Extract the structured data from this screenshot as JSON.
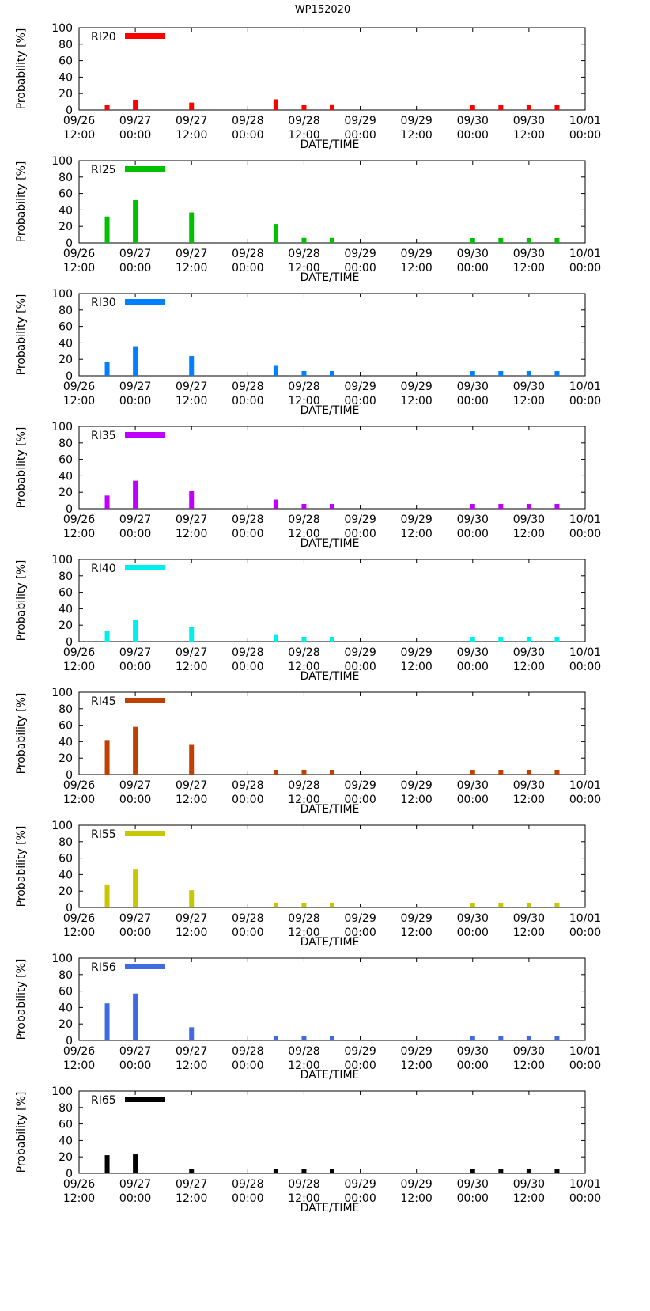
{
  "figure": {
    "title": "WP152020"
  },
  "axes_common": {
    "ylabel": "Probability [%]",
    "xlabel": "DATE/TIME",
    "yticks": [
      "0",
      "20",
      "40",
      "60",
      "80",
      "100"
    ],
    "xticks": [
      {
        "date": "09/26",
        "time": "12:00"
      },
      {
        "date": "09/27",
        "time": "00:00"
      },
      {
        "date": "09/27",
        "time": "12:00"
      },
      {
        "date": "09/28",
        "time": "00:00"
      },
      {
        "date": "09/28",
        "time": "12:00"
      },
      {
        "date": "09/29",
        "time": "00:00"
      },
      {
        "date": "09/29",
        "time": "12:00"
      },
      {
        "date": "09/30",
        "time": "00:00"
      },
      {
        "date": "09/30",
        "time": "12:00"
      },
      {
        "date": "10/01",
        "time": "00:00"
      }
    ]
  },
  "chart_data": [
    {
      "type": "bar",
      "title": "RI20",
      "color": "#ff0000",
      "xlabel": "DATE/TIME",
      "ylabel": "Probability [%]",
      "ylim": [
        0,
        100
      ],
      "x_hours_since_0926_1200": [
        6,
        12,
        24,
        42,
        48,
        54,
        84,
        90,
        96,
        102
      ],
      "values": [
        5,
        12,
        9,
        13,
        5,
        6,
        2,
        2,
        2,
        2
      ]
    },
    {
      "type": "bar",
      "title": "RI25",
      "color": "#00c000",
      "xlabel": "DATE/TIME",
      "ylabel": "Probability [%]",
      "ylim": [
        0,
        100
      ],
      "x_hours_since_0926_1200": [
        6,
        12,
        24,
        42,
        48,
        54,
        84,
        90,
        96,
        102
      ],
      "values": [
        32,
        52,
        37,
        23,
        6,
        6,
        2,
        2,
        2,
        2
      ]
    },
    {
      "type": "bar",
      "title": "RI30",
      "color": "#0080ff",
      "xlabel": "DATE/TIME",
      "ylabel": "Probability [%]",
      "ylim": [
        0,
        100
      ],
      "x_hours_since_0926_1200": [
        6,
        12,
        24,
        42,
        48,
        54,
        84,
        90,
        96,
        102
      ],
      "values": [
        17,
        36,
        24,
        13,
        3,
        3,
        2,
        2,
        2,
        2
      ]
    },
    {
      "type": "bar",
      "title": "RI35",
      "color": "#c000ff",
      "xlabel": "DATE/TIME",
      "ylabel": "Probability [%]",
      "ylim": [
        0,
        100
      ],
      "x_hours_since_0926_1200": [
        6,
        12,
        24,
        42,
        48,
        54,
        84,
        90,
        96,
        102
      ],
      "values": [
        16,
        34,
        22,
        11,
        3,
        3,
        2,
        2,
        2,
        2
      ]
    },
    {
      "type": "bar",
      "title": "RI40",
      "color": "#00eeee",
      "xlabel": "DATE/TIME",
      "ylabel": "Probability [%]",
      "ylim": [
        0,
        100
      ],
      "x_hours_since_0926_1200": [
        6,
        12,
        24,
        42,
        48,
        54,
        84,
        90,
        96,
        102
      ],
      "values": [
        13,
        27,
        18,
        9,
        3,
        3,
        2,
        2,
        2,
        2
      ]
    },
    {
      "type": "bar",
      "title": "RI45",
      "color": "#c04000",
      "xlabel": "DATE/TIME",
      "ylabel": "Probability [%]",
      "ylim": [
        0,
        100
      ],
      "x_hours_since_0926_1200": [
        6,
        12,
        24,
        42,
        48,
        54,
        84,
        90,
        96,
        102
      ],
      "values": [
        42,
        58,
        37,
        5,
        3,
        3,
        2,
        2,
        2,
        2
      ]
    },
    {
      "type": "bar",
      "title": "RI55",
      "color": "#c8c800",
      "xlabel": "DATE/TIME",
      "ylabel": "Probability [%]",
      "ylim": [
        0,
        100
      ],
      "x_hours_since_0926_1200": [
        6,
        12,
        24,
        42,
        48,
        54,
        84,
        90,
        96,
        102
      ],
      "values": [
        28,
        47,
        21,
        3,
        2,
        2,
        2,
        2,
        2,
        2
      ]
    },
    {
      "type": "bar",
      "title": "RI56",
      "color": "#4169e1",
      "xlabel": "DATE/TIME",
      "ylabel": "Probability [%]",
      "ylim": [
        0,
        100
      ],
      "x_hours_since_0926_1200": [
        6,
        12,
        24,
        42,
        48,
        54,
        84,
        90,
        96,
        102
      ],
      "values": [
        45,
        57,
        16,
        3,
        2,
        2,
        2,
        2,
        2,
        2
      ]
    },
    {
      "type": "bar",
      "title": "RI65",
      "color": "#000000",
      "xlabel": "DATE/TIME",
      "ylabel": "Probability [%]",
      "ylim": [
        0,
        100
      ],
      "x_hours_since_0926_1200": [
        6,
        12,
        24,
        42,
        48,
        54,
        84,
        90,
        96,
        102
      ],
      "values": [
        22,
        23,
        3,
        2,
        2,
        2,
        2,
        2,
        2,
        2
      ]
    }
  ]
}
